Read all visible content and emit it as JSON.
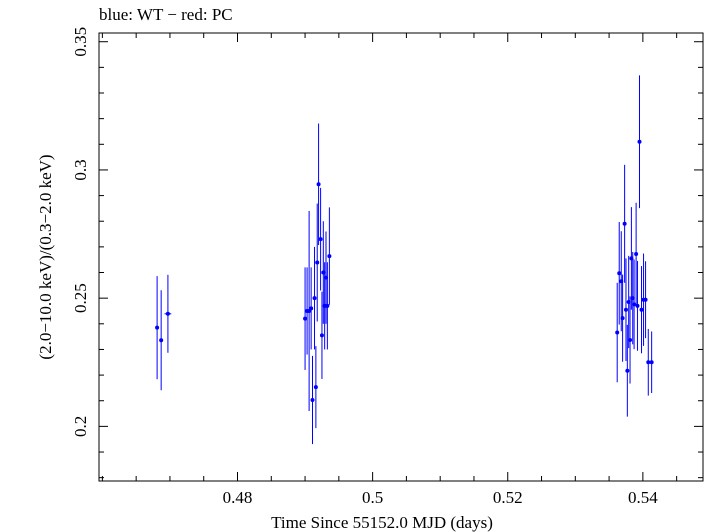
{
  "chart_data": {
    "type": "scatter",
    "title": "blue: WT − red: PC",
    "xlabel": "Time Since 55152.0 MJD (days)",
    "ylabel": "(2.0−10.0 keV)/(0.3−2.0 keV)",
    "xlim": [
      0.4595,
      0.5489
    ],
    "ylim": [
      0.1787,
      0.3534
    ],
    "x_ticks": [
      0.48,
      0.5,
      0.52,
      0.54
    ],
    "x_tick_labels": [
      "0.48",
      "0.5",
      "0.52",
      "0.54"
    ],
    "y_ticks": [
      0.2,
      0.25,
      0.3,
      0.35
    ],
    "y_tick_labels": [
      "0.2",
      "0.25",
      "0.3",
      "0.35"
    ],
    "grid": false,
    "series": [
      {
        "color": "#0000ff",
        "points": [
          {
            "x": 0.4681,
            "y": 0.2385,
            "yerr": 0.0201,
            "xerr": 0.0002
          },
          {
            "x": 0.4687,
            "y": 0.2336,
            "yerr": 0.0195,
            "xerr": 0.0002
          },
          {
            "x": 0.4697,
            "y": 0.2439,
            "yerr": 0.0152,
            "xerr": 0.0005
          },
          {
            "x": 0.49,
            "y": 0.242,
            "yerr": 0.02,
            "xerr": 0.0002
          },
          {
            "x": 0.4903,
            "y": 0.245,
            "yerr": 0.017,
            "xerr": 0.0002
          },
          {
            "x": 0.4906,
            "y": 0.245,
            "yerr": 0.039,
            "xerr": 0.0002
          },
          {
            "x": 0.4909,
            "y": 0.246,
            "yerr": 0.016,
            "xerr": 0.0002
          },
          {
            "x": 0.4911,
            "y": 0.2103,
            "yerr": 0.0172,
            "xerr": 0.0002
          },
          {
            "x": 0.4914,
            "y": 0.25,
            "yerr": 0.02,
            "xerr": 0.0002
          },
          {
            "x": 0.4916,
            "y": 0.2153,
            "yerr": 0.016,
            "xerr": 0.0002
          },
          {
            "x": 0.4918,
            "y": 0.2639,
            "yerr": 0.023,
            "xerr": 0.0002
          },
          {
            "x": 0.492,
            "y": 0.2944,
            "yerr": 0.0237,
            "xerr": 0.0002
          },
          {
            "x": 0.4923,
            "y": 0.273,
            "yerr": 0.02,
            "xerr": 0.0002
          },
          {
            "x": 0.4925,
            "y": 0.2355,
            "yerr": 0.017,
            "xerr": 0.0002
          },
          {
            "x": 0.4927,
            "y": 0.26,
            "yerr": 0.02,
            "xerr": 0.0002
          },
          {
            "x": 0.4929,
            "y": 0.247,
            "yerr": 0.017,
            "xerr": 0.0002
          },
          {
            "x": 0.4931,
            "y": 0.258,
            "yerr": 0.018,
            "xerr": 0.0002
          },
          {
            "x": 0.4933,
            "y": 0.247,
            "yerr": 0.017,
            "xerr": 0.0002
          },
          {
            "x": 0.4936,
            "y": 0.2664,
            "yerr": 0.019,
            "xerr": 0.0002
          },
          {
            "x": 0.5362,
            "y": 0.2366,
            "yerr": 0.0194,
            "xerr": 0.0002
          },
          {
            "x": 0.5365,
            "y": 0.2597,
            "yerr": 0.02,
            "xerr": 0.0002
          },
          {
            "x": 0.5368,
            "y": 0.2566,
            "yerr": 0.0195,
            "xerr": 0.0002
          },
          {
            "x": 0.537,
            "y": 0.2422,
            "yerr": 0.017,
            "xerr": 0.0002
          },
          {
            "x": 0.5373,
            "y": 0.279,
            "yerr": 0.023,
            "xerr": 0.0002
          },
          {
            "x": 0.5375,
            "y": 0.2455,
            "yerr": 0.02,
            "xerr": 0.0002
          },
          {
            "x": 0.5377,
            "y": 0.2217,
            "yerr": 0.0179,
            "xerr": 0.0002
          },
          {
            "x": 0.5379,
            "y": 0.2485,
            "yerr": 0.018,
            "xerr": 0.0002
          },
          {
            "x": 0.5381,
            "y": 0.2337,
            "yerr": 0.017,
            "xerr": 0.0002
          },
          {
            "x": 0.5383,
            "y": 0.2655,
            "yerr": 0.02,
            "xerr": 0.0002
          },
          {
            "x": 0.5385,
            "y": 0.25,
            "yerr": 0.018,
            "xerr": 0.0002
          },
          {
            "x": 0.5387,
            "y": 0.2476,
            "yerr": 0.0175,
            "xerr": 0.0002
          },
          {
            "x": 0.539,
            "y": 0.2672,
            "yerr": 0.02,
            "xerr": 0.0002
          },
          {
            "x": 0.5392,
            "y": 0.247,
            "yerr": 0.0175,
            "xerr": 0.0002
          },
          {
            "x": 0.5395,
            "y": 0.311,
            "yerr": 0.0259,
            "xerr": 0.0002
          },
          {
            "x": 0.5398,
            "y": 0.2455,
            "yerr": 0.017,
            "xerr": 0.0002
          },
          {
            "x": 0.5401,
            "y": 0.2494,
            "yerr": 0.018,
            "xerr": 0.0002
          },
          {
            "x": 0.5404,
            "y": 0.2494,
            "yerr": 0.015,
            "xerr": 0.0002
          },
          {
            "x": 0.5408,
            "y": 0.225,
            "yerr": 0.013,
            "xerr": 0.0002
          },
          {
            "x": 0.5413,
            "y": 0.225,
            "yerr": 0.012,
            "xerr": 0.0002
          }
        ]
      }
    ]
  },
  "colors": {
    "series": "#0000ff",
    "axes": "#000000",
    "background": "#ffffff"
  }
}
